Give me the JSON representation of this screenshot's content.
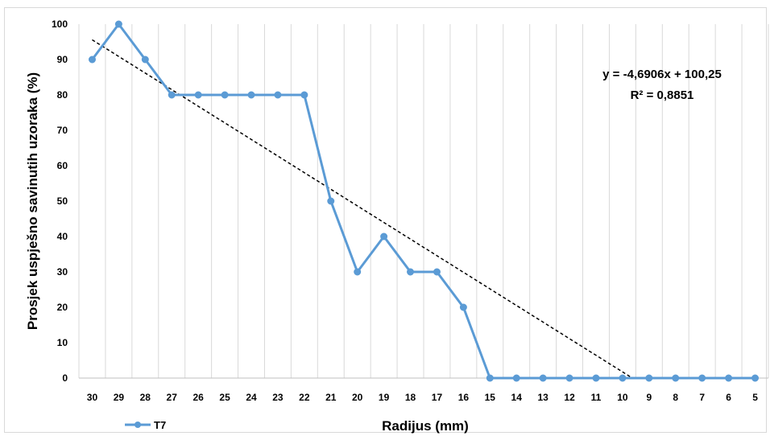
{
  "chart_data": {
    "type": "line",
    "xlabel": "Radijus (mm)",
    "ylabel": "Prosjek  uspješno savinutih uzoraka (%)",
    "categories": [
      "30",
      "29",
      "28",
      "27",
      "26",
      "25",
      "24",
      "23",
      "22",
      "21",
      "20",
      "19",
      "18",
      "17",
      "16",
      "15",
      "14",
      "13",
      "12",
      "11",
      "10",
      "9",
      "8",
      "7",
      "6",
      "5"
    ],
    "ylim": [
      0,
      100
    ],
    "yticks": [
      "0",
      "10",
      "20",
      "30",
      "40",
      "50",
      "60",
      "70",
      "80",
      "90",
      "100"
    ],
    "grid": "vertical",
    "legend_position": "bottom-left",
    "series": [
      {
        "name": "T7",
        "color": "#5B9BD5",
        "values": [
          90,
          100,
          90,
          80,
          80,
          80,
          80,
          80,
          80,
          50,
          30,
          40,
          30,
          30,
          20,
          0,
          0,
          0,
          0,
          0,
          0,
          0,
          0,
          0,
          0,
          0
        ]
      }
    ],
    "trendline": {
      "type": "linear",
      "slope": -4.6906,
      "intercept": 100.25,
      "equation": "y = -4,6906x + 100,25",
      "r_squared": "R² = 0,8851",
      "color": "#000000",
      "style": "dashed"
    }
  }
}
